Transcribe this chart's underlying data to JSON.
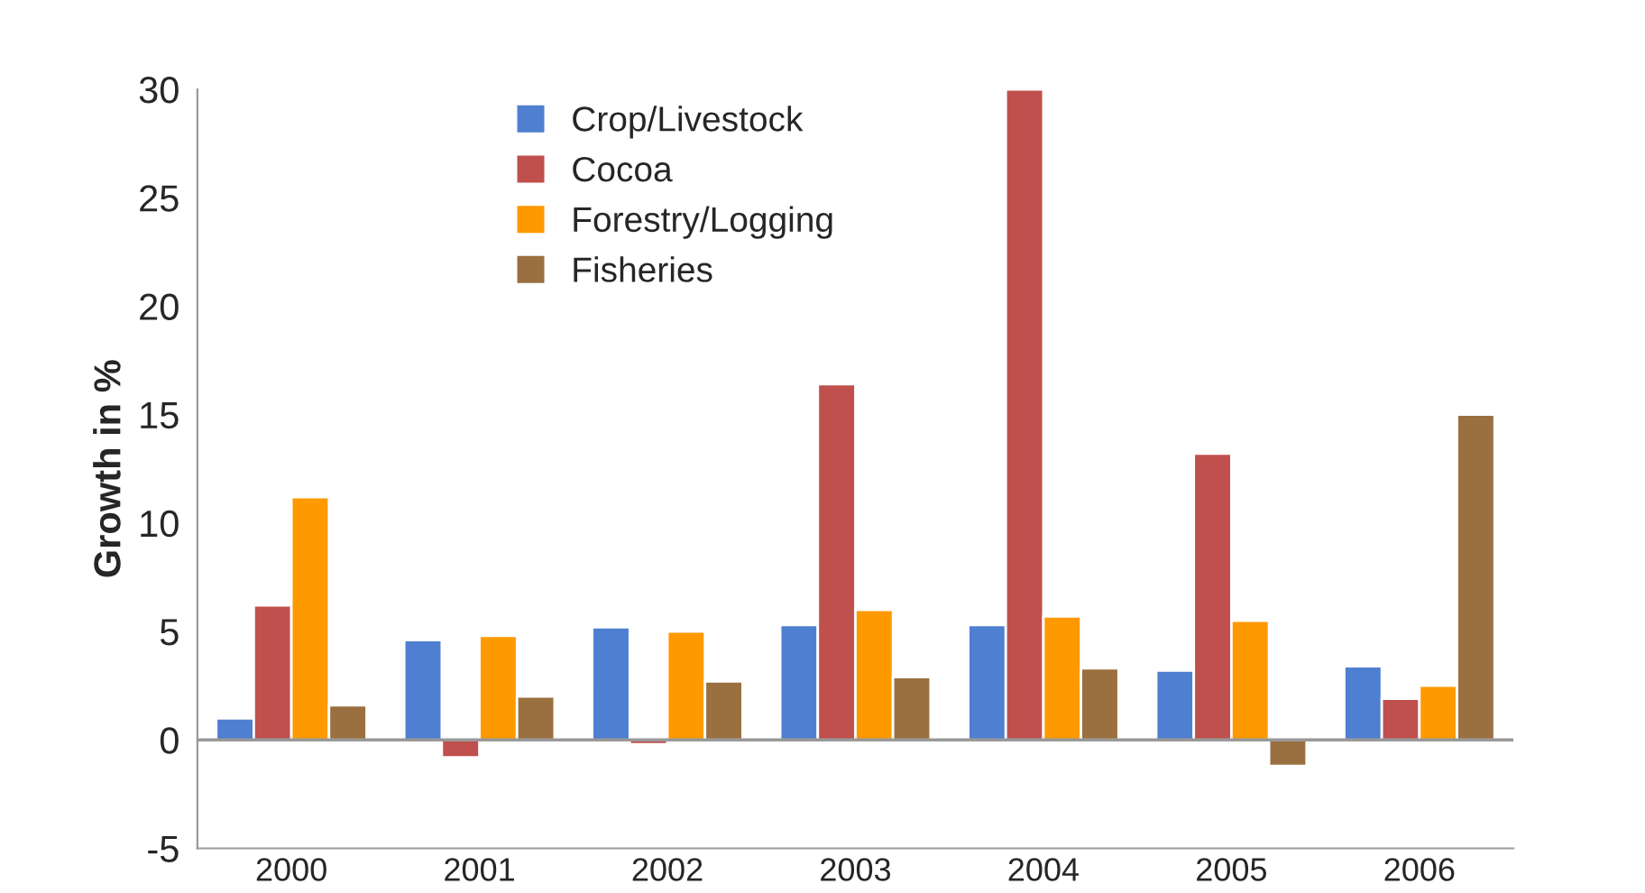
{
  "chart_data": {
    "type": "bar",
    "ylabel": "Growth in %",
    "categories": [
      "2000",
      "2001",
      "2002",
      "2003",
      "2004",
      "2005",
      "2006"
    ],
    "series": [
      {
        "name": "Crop/Livestock",
        "color": "#4f7fd0",
        "values": [
          1.0,
          4.6,
          5.2,
          5.3,
          5.3,
          3.2,
          3.4
        ]
      },
      {
        "name": "Cocoa",
        "color": "#c0504d",
        "values": [
          6.2,
          -0.8,
          -0.2,
          16.4,
          30,
          13.2,
          1.9
        ]
      },
      {
        "name": "Forestry/Logging",
        "color": "#ff9900",
        "values": [
          11.2,
          4.8,
          5.0,
          6.0,
          5.7,
          5.5,
          2.5
        ]
      },
      {
        "name": "Fisheries",
        "color": "#9a7040",
        "values": [
          1.6,
          2.0,
          2.7,
          2.9,
          3.3,
          -1.2,
          15.0
        ]
      }
    ],
    "ylim": [
      -5,
      30
    ],
    "yticks": [
      -5,
      0,
      5,
      10,
      15,
      20,
      25,
      30
    ],
    "ref_lines": [
      {
        "axis": "y",
        "value": 0,
        "color": "#999999"
      }
    ],
    "legend": "top left"
  }
}
